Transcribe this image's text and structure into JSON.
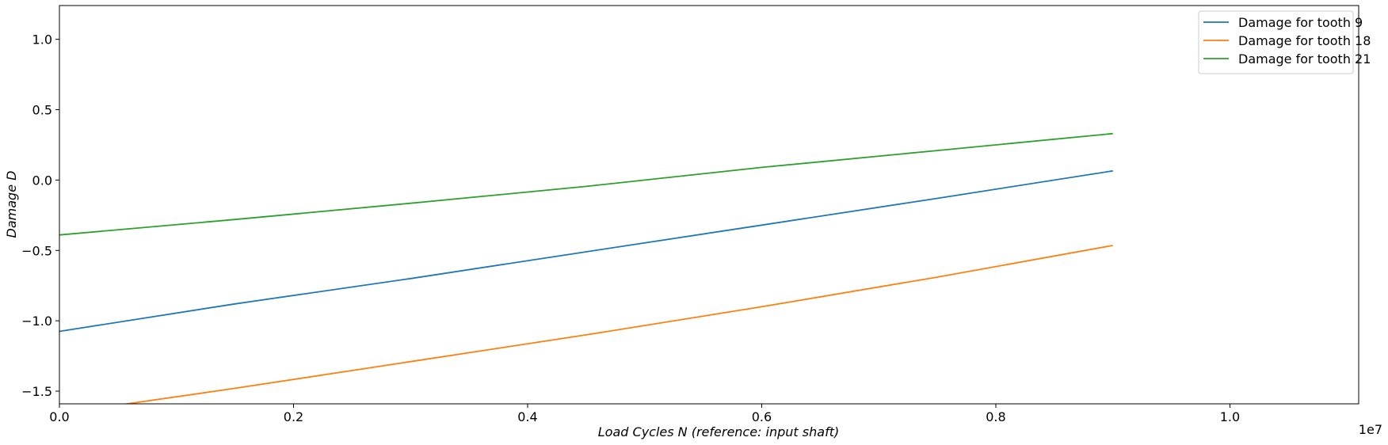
{
  "chart_data": {
    "type": "line",
    "title": "",
    "xlabel": "Load Cycles N (reference: input shaft)",
    "ylabel": "Damage D",
    "x_offset_label": "1e7",
    "xlim": [
      0,
      11100000
    ],
    "ylim": [
      -1.59,
      1.24
    ],
    "x_ticks": [
      0,
      2000000,
      4000000,
      6000000,
      8000000,
      10000000
    ],
    "x_tick_labels": [
      "0.0",
      "0.2",
      "0.4",
      "0.6",
      "0.8",
      "1.0"
    ],
    "y_ticks": [
      -1.5,
      -1.0,
      -0.5,
      0.0,
      0.5,
      1.0
    ],
    "y_tick_labels": [
      "−1.5",
      "−1.0",
      "−0.5",
      "0.0",
      "0.5",
      "1.0"
    ],
    "grid": false,
    "legend_position": "top-right",
    "series": [
      {
        "name": "Damage for tooth 9",
        "color": "#1f77b4",
        "x": [
          0,
          1500000,
          3000000,
          4500000,
          6000000,
          7500000,
          9000000
        ],
        "y": [
          -1.075,
          -0.88,
          -0.7,
          -0.51,
          -0.32,
          -0.13,
          0.065
        ]
      },
      {
        "name": "Damage for tooth 18",
        "color": "#ff7f0e",
        "x": [
          0,
          1500000,
          3000000,
          4500000,
          6000000,
          7500000,
          9000000
        ],
        "y": [
          -1.66,
          -1.48,
          -1.29,
          -1.1,
          -0.9,
          -0.69,
          -0.465
        ]
      },
      {
        "name": "Damage for tooth 21",
        "color": "#2ca02c",
        "x": [
          0,
          1500000,
          3000000,
          4500000,
          6000000,
          7500000,
          9000000
        ],
        "y": [
          -0.39,
          -0.28,
          -0.165,
          -0.045,
          0.09,
          0.21,
          0.33
        ]
      }
    ]
  }
}
